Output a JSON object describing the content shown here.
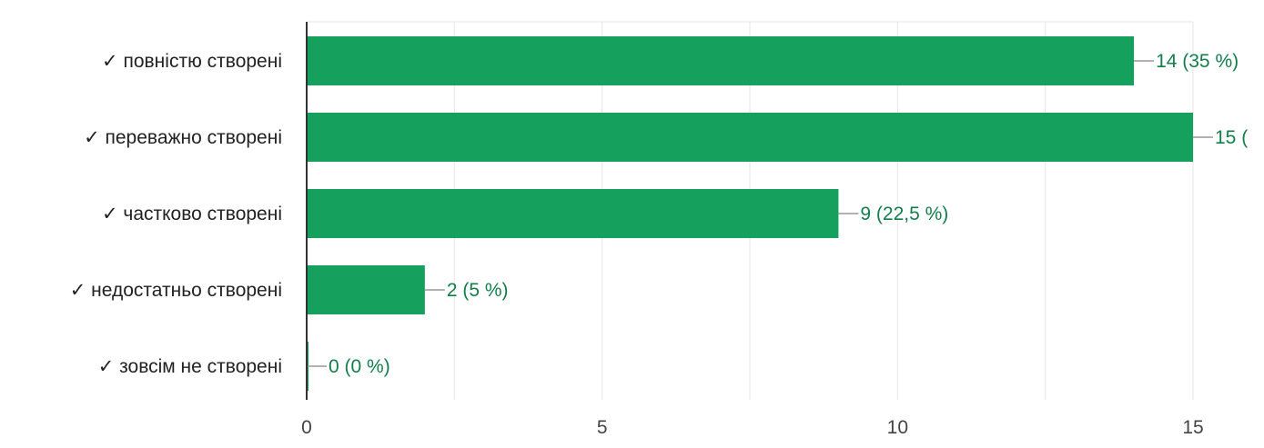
{
  "chart_data": {
    "type": "bar",
    "orientation": "horizontal",
    "categories": [
      "✓ повністю створені",
      "✓ переважно створені",
      "✓ частково створені",
      "✓ недостатньо створені",
      "✓ зовсім не створені"
    ],
    "values": [
      14,
      15,
      9,
      2,
      0
    ],
    "data_labels": [
      "14 (35 %)",
      "15 (",
      "9 (22,5 %)",
      "2 (5 %)",
      "0 (0 %)"
    ],
    "xlim": [
      0,
      15
    ],
    "x_ticks": [
      0,
      5,
      10,
      15
    ],
    "grid": true,
    "bar_color": "#16a05d",
    "label_color": "#137e4a"
  }
}
